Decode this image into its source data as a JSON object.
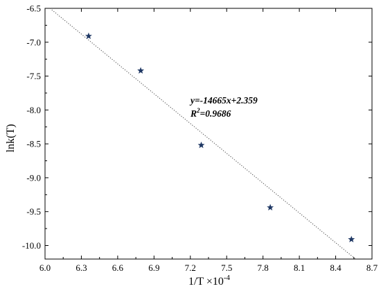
{
  "chart_data": {
    "type": "scatter",
    "x_ticks": [
      "6.0",
      "6.3",
      "6.6",
      "6.9",
      "7.2",
      "7.5",
      "7.8",
      "8.1",
      "8.4",
      "8.7"
    ],
    "y_ticks": [
      "-6.5",
      "-7.0",
      "-7.5",
      "-8.0",
      "-8.5",
      "-9.0",
      "-9.5",
      "-10.0"
    ],
    "xlim": [
      6.0,
      8.7
    ],
    "ylim": [
      -10.2,
      -6.5
    ],
    "xlabel_main": "1/T ×10",
    "xlabel_exp": "-4",
    "ylabel": "lnk(T)",
    "points": [
      {
        "x": 6.36,
        "y": -6.91
      },
      {
        "x": 6.79,
        "y": -7.42
      },
      {
        "x": 7.29,
        "y": -8.52
      },
      {
        "x": 7.86,
        "y": -9.44
      },
      {
        "x": 8.53,
        "y": -9.91
      }
    ],
    "fit_line": {
      "slope": -14665,
      "intercept": 2.359,
      "style": "dotted",
      "x_scale": 0.0001
    },
    "annotation": {
      "equation": "y=-14665x+2.359",
      "r2_prefix": "R",
      "r2_sup": "2",
      "r2_value": "=0.9686"
    },
    "grid": false,
    "colors": {
      "points": "#1f3864",
      "axes": "#000000",
      "fit_line": "#555555"
    }
  }
}
